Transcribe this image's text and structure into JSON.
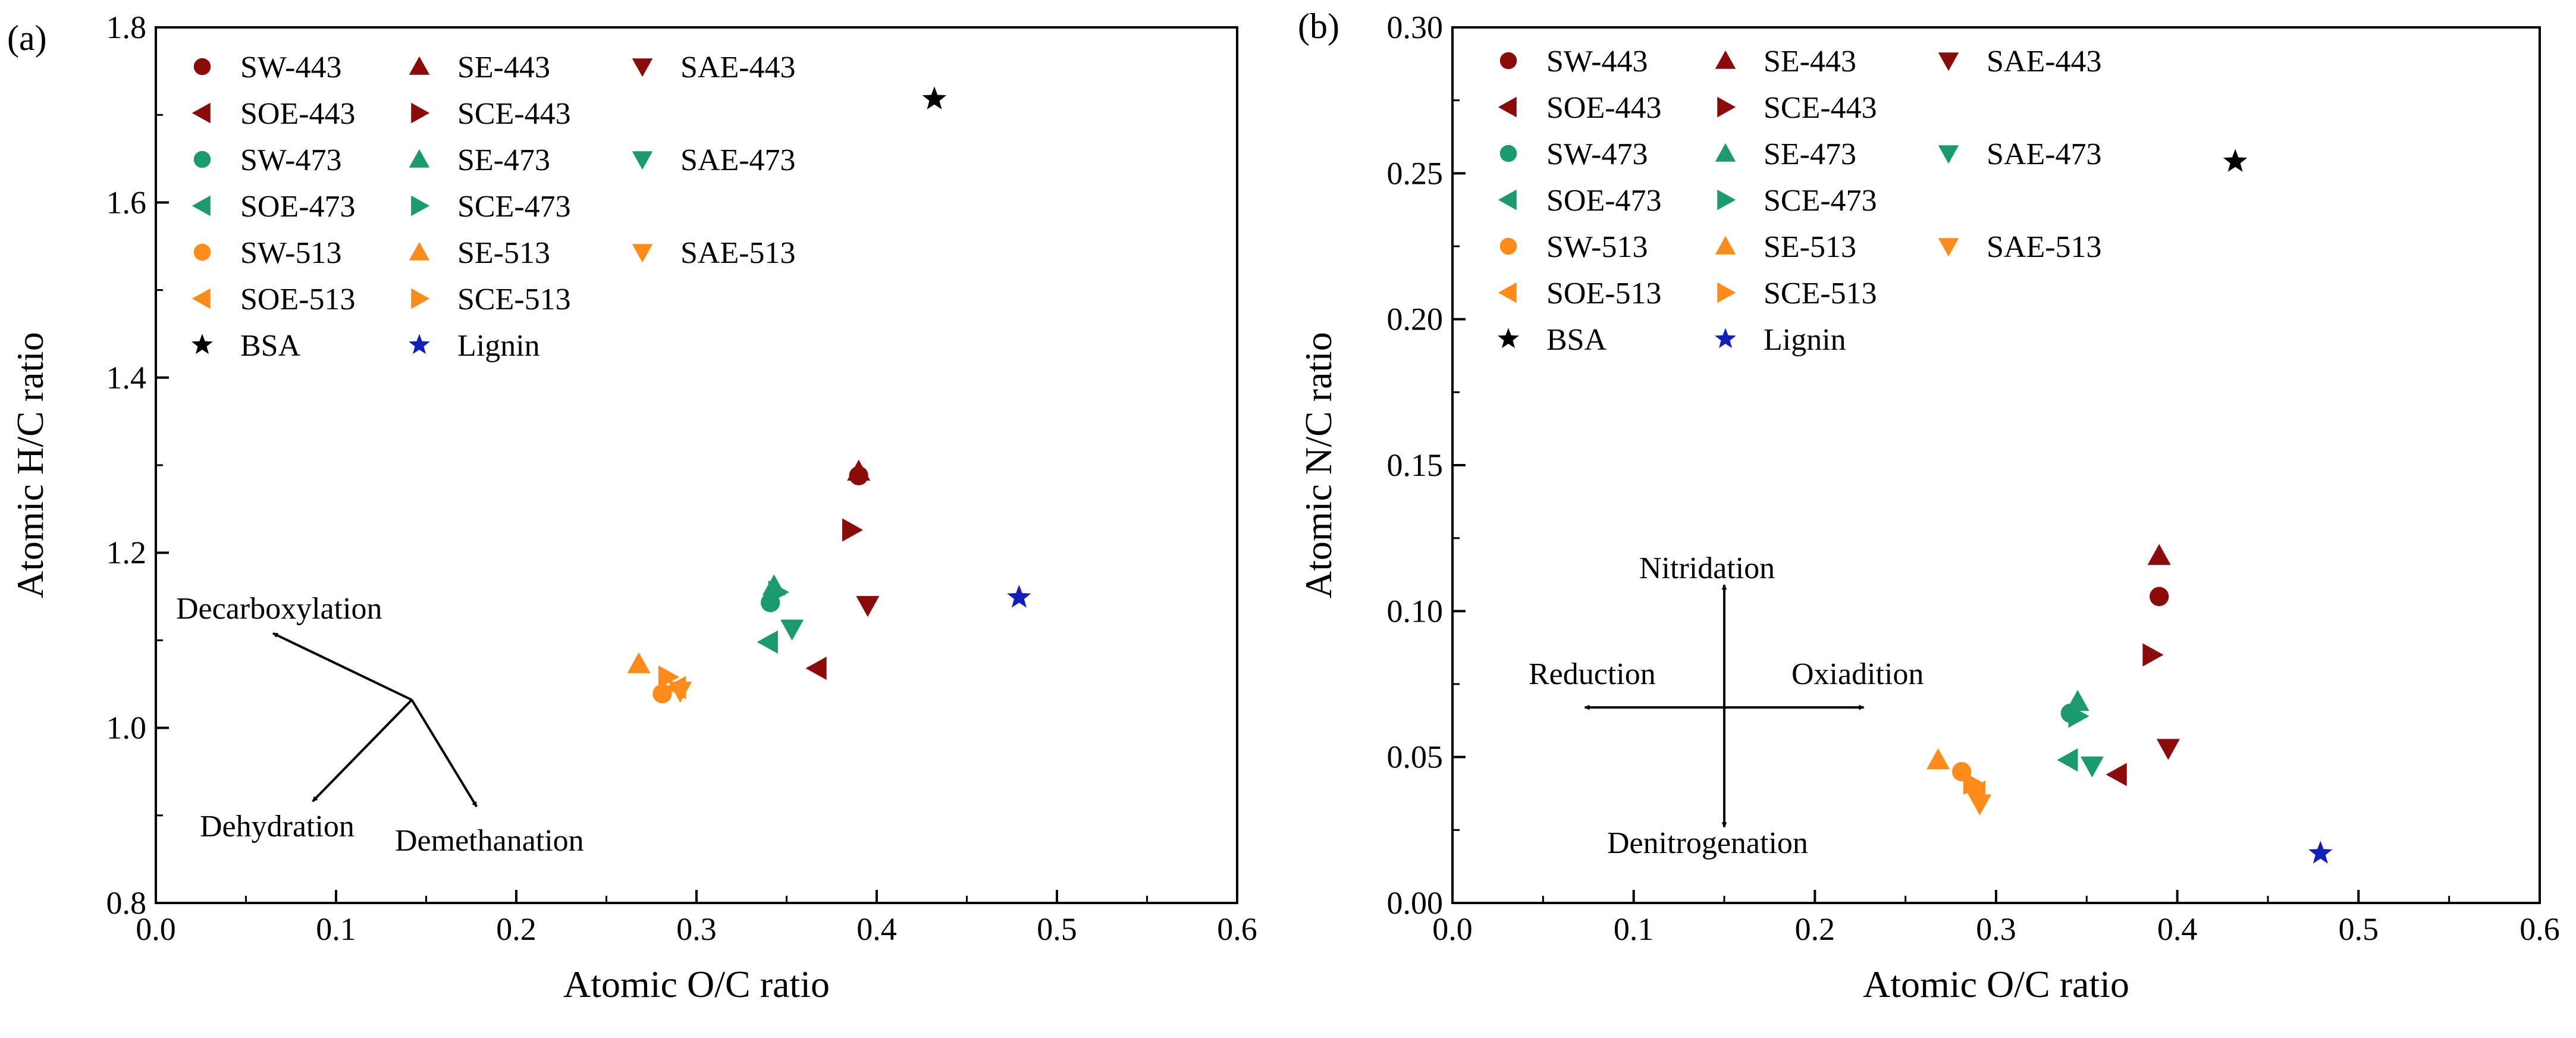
{
  "colors": {
    "c443": "#8b0a0a",
    "c473": "#1a9a6e",
    "c513": "#ff8c1a",
    "bsa": "#000000",
    "lignin": "#1020b8",
    "axis": "#000000"
  },
  "chart_data": [
    {
      "type": "scatter",
      "panel_label": "(a)",
      "xlabel": "Atomic O/C ratio",
      "ylabel": "Atomic H/C ratio",
      "xlim": [
        0.0,
        0.6
      ],
      "ylim": [
        0.8,
        1.8
      ],
      "xticks": [
        0.0,
        0.1,
        0.2,
        0.3,
        0.4,
        0.5,
        0.6
      ],
      "yticks": [
        0.8,
        1.0,
        1.2,
        1.4,
        1.6,
        1.8
      ],
      "xtick_labels": [
        "0.0",
        "0.1",
        "0.2",
        "0.3",
        "0.4",
        "0.5",
        "0.6"
      ],
      "ytick_labels": [
        "0.8",
        "1.0",
        "1.2",
        "1.4",
        "1.6",
        "1.8"
      ],
      "legend_position": "top-left",
      "series": [
        {
          "name": "SW-443",
          "marker": "circle",
          "color": "c443",
          "x": 0.39,
          "y": 1.288
        },
        {
          "name": "SE-443",
          "marker": "triangle-up",
          "color": "c443",
          "x": 0.39,
          "y": 1.293
        },
        {
          "name": "SAE-443",
          "marker": "triangle-down",
          "color": "c443",
          "x": 0.395,
          "y": 1.14
        },
        {
          "name": "SOE-443",
          "marker": "triangle-left",
          "color": "c443",
          "x": 0.367,
          "y": 1.068
        },
        {
          "name": "SCE-443",
          "marker": "triangle-right",
          "color": "c443",
          "x": 0.386,
          "y": 1.226
        },
        {
          "name": "SW-473",
          "marker": "circle",
          "color": "c473",
          "x": 0.341,
          "y": 1.143
        },
        {
          "name": "SE-473",
          "marker": "triangle-up",
          "color": "c473",
          "x": 0.343,
          "y": 1.162
        },
        {
          "name": "SAE-473",
          "marker": "triangle-down",
          "color": "c473",
          "x": 0.353,
          "y": 1.113
        },
        {
          "name": "SOE-473",
          "marker": "triangle-left",
          "color": "c473",
          "x": 0.34,
          "y": 1.098
        },
        {
          "name": "SCE-473",
          "marker": "triangle-right",
          "color": "c473",
          "x": 0.345,
          "y": 1.155
        },
        {
          "name": "SW-513",
          "marker": "circle",
          "color": "c513",
          "x": 0.281,
          "y": 1.039
        },
        {
          "name": "SE-513",
          "marker": "triangle-up",
          "color": "c513",
          "x": 0.268,
          "y": 1.073
        },
        {
          "name": "SAE-513",
          "marker": "triangle-down",
          "color": "c513",
          "x": 0.291,
          "y": 1.042
        },
        {
          "name": "SOE-513",
          "marker": "triangle-left",
          "color": "c513",
          "x": 0.289,
          "y": 1.046
        },
        {
          "name": "SCE-513",
          "marker": "triangle-right",
          "color": "c513",
          "x": 0.284,
          "y": 1.058
        },
        {
          "name": "BSA",
          "marker": "star",
          "color": "bsa",
          "x": 0.432,
          "y": 1.718
        },
        {
          "name": "Lignin",
          "marker": "star",
          "color": "lignin",
          "x": 0.479,
          "y": 1.149
        }
      ],
      "annotations": {
        "origin": [
          0.142,
          1.032
        ],
        "arrows": [
          {
            "label": "Decarboxylation",
            "to": [
              0.065,
              1.108
            ]
          },
          {
            "label": "Dehydration",
            "to": [
              0.087,
              0.916
            ]
          },
          {
            "label": "Demethanation",
            "to": [
              0.178,
              0.91
            ]
          }
        ]
      }
    },
    {
      "type": "scatter",
      "panel_label": "(b)",
      "xlabel": "Atomic O/C ratio",
      "ylabel": "Atomic N/C ratio",
      "xlim": [
        0.0,
        0.6
      ],
      "ylim": [
        0.0,
        0.3
      ],
      "xticks": [
        0.0,
        0.1,
        0.2,
        0.3,
        0.4,
        0.5,
        0.6
      ],
      "yticks": [
        0.0,
        0.05,
        0.1,
        0.15,
        0.2,
        0.25,
        0.3
      ],
      "xtick_labels": [
        "0.0",
        "0.1",
        "0.2",
        "0.3",
        "0.4",
        "0.5",
        "0.6"
      ],
      "ytick_labels": [
        "0.00",
        "0.05",
        "0.10",
        "0.15",
        "0.20",
        "0.25",
        "0.30"
      ],
      "legend_position": "top-left",
      "series": [
        {
          "name": "SW-443",
          "marker": "circle",
          "color": "c443",
          "x": 0.39,
          "y": 0.105
        },
        {
          "name": "SE-443",
          "marker": "triangle-up",
          "color": "c443",
          "x": 0.39,
          "y": 0.119
        },
        {
          "name": "SAE-443",
          "marker": "triangle-down",
          "color": "c443",
          "x": 0.395,
          "y": 0.053
        },
        {
          "name": "SOE-443",
          "marker": "triangle-left",
          "color": "c443",
          "x": 0.367,
          "y": 0.044
        },
        {
          "name": "SCE-443",
          "marker": "triangle-right",
          "color": "c443",
          "x": 0.386,
          "y": 0.085
        },
        {
          "name": "SW-473",
          "marker": "circle",
          "color": "c473",
          "x": 0.341,
          "y": 0.065
        },
        {
          "name": "SE-473",
          "marker": "triangle-up",
          "color": "c473",
          "x": 0.345,
          "y": 0.069
        },
        {
          "name": "SAE-473",
          "marker": "triangle-down",
          "color": "c473",
          "x": 0.353,
          "y": 0.047
        },
        {
          "name": "SOE-473",
          "marker": "triangle-left",
          "color": "c473",
          "x": 0.34,
          "y": 0.049
        },
        {
          "name": "SCE-473",
          "marker": "triangle-right",
          "color": "c473",
          "x": 0.345,
          "y": 0.064
        },
        {
          "name": "SW-513",
          "marker": "circle",
          "color": "c513",
          "x": 0.281,
          "y": 0.045
        },
        {
          "name": "SE-513",
          "marker": "triangle-up",
          "color": "c513",
          "x": 0.268,
          "y": 0.049
        },
        {
          "name": "SAE-513",
          "marker": "triangle-down",
          "color": "c513",
          "x": 0.291,
          "y": 0.034
        },
        {
          "name": "SOE-513",
          "marker": "triangle-left",
          "color": "c513",
          "x": 0.289,
          "y": 0.038
        },
        {
          "name": "SCE-513",
          "marker": "triangle-right",
          "color": "c513",
          "x": 0.287,
          "y": 0.041
        },
        {
          "name": "BSA",
          "marker": "star",
          "color": "bsa",
          "x": 0.432,
          "y": 0.254
        },
        {
          "name": "Lignin",
          "marker": "star",
          "color": "lignin",
          "x": 0.479,
          "y": 0.017
        }
      ],
      "annotations": {
        "origin": [
          0.15,
          0.067
        ],
        "arrows": [
          {
            "label": "Nitridation",
            "to": [
              0.15,
              0.109
            ]
          },
          {
            "label": "Denitrogenation",
            "to": [
              0.15,
              0.026
            ]
          },
          {
            "label": "Reduction",
            "to": [
              0.073,
              0.067
            ]
          },
          {
            "label": "Oxiadition",
            "to": [
              0.227,
              0.067
            ]
          }
        ]
      }
    }
  ]
}
